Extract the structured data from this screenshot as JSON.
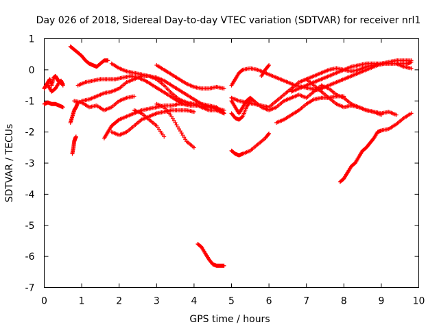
{
  "chart_data": {
    "type": "scatter",
    "title": "Day 026 of 2018, Sidereal Day-to-day VTEC variation (SDTVAR) for receiver nrl1",
    "xlabel": "GPS time / hours",
    "ylabel": "SDTVAR / TECUs",
    "xlim": [
      0,
      10
    ],
    "ylim": [
      -7,
      1
    ],
    "xticks": [
      "0",
      "1",
      "2",
      "3",
      "4",
      "5",
      "6",
      "7",
      "8",
      "9",
      "10"
    ],
    "yticks": [
      "1",
      "0",
      "-1",
      "-2",
      "-3",
      "-4",
      "-5",
      "-6",
      "-7"
    ],
    "grid": false,
    "legend": "none",
    "marker": "+",
    "marker_color": "#ff0000",
    "series": [
      {
        "name": "track-01",
        "x": [
          0.0,
          0.1,
          0.2,
          0.3,
          0.4,
          0.5
        ],
        "y": [
          -1.1,
          -1.05,
          -1.1,
          -1.1,
          -1.15,
          -1.2
        ]
      },
      {
        "name": "track-02",
        "x": [
          0.0,
          0.05,
          0.1,
          0.15,
          0.2,
          0.25,
          0.3,
          0.35,
          0.4,
          0.45,
          0.5
        ],
        "y": [
          -0.6,
          -0.5,
          -0.4,
          -0.3,
          -0.5,
          -0.25,
          -0.2,
          -0.3,
          -0.4,
          -0.35,
          -0.5
        ]
      },
      {
        "name": "track-03",
        "x": [
          0.1,
          0.2,
          0.3,
          0.4,
          0.5
        ],
        "y": [
          -0.5,
          -0.7,
          -0.6,
          -0.4,
          -0.45
        ]
      },
      {
        "name": "track-04",
        "x": [
          0.7,
          0.75,
          0.8,
          0.85,
          0.9
        ],
        "y": [
          -1.7,
          -1.5,
          -1.3,
          -1.2,
          -1.05
        ]
      },
      {
        "name": "track-05",
        "x": [
          0.75,
          0.78,
          0.8,
          0.83,
          0.85
        ],
        "y": [
          -2.7,
          -2.5,
          -2.3,
          -2.2,
          -2.15
        ]
      },
      {
        "name": "track-06",
        "x": [
          0.7,
          0.8,
          0.9,
          1.0,
          1.1,
          1.2,
          1.3,
          1.4,
          1.5,
          1.6,
          1.7
        ],
        "y": [
          0.75,
          0.65,
          0.55,
          0.45,
          0.3,
          0.2,
          0.15,
          0.1,
          0.2,
          0.3,
          0.3
        ]
      },
      {
        "name": "track-07",
        "x": [
          0.9,
          1.1,
          1.3,
          1.5,
          1.7,
          1.9,
          2.1,
          2.3,
          2.5,
          2.7,
          2.9,
          3.1,
          3.3,
          3.5,
          3.7,
          3.9,
          4.1,
          4.3,
          4.5,
          4.7,
          4.8
        ],
        "y": [
          -0.5,
          -0.4,
          -0.35,
          -0.3,
          -0.3,
          -0.3,
          -0.25,
          -0.2,
          -0.25,
          -0.35,
          -0.5,
          -0.65,
          -0.8,
          -0.95,
          -1.1,
          -1.15,
          -1.15,
          -1.2,
          -1.2,
          -1.3,
          -1.4
        ]
      },
      {
        "name": "track-08",
        "x": [
          1.0,
          1.2,
          1.4,
          1.6,
          1.8,
          2.0,
          2.2,
          2.4,
          2.6,
          2.8,
          3.0,
          3.2,
          3.4,
          3.6,
          3.8,
          4.0,
          4.2,
          4.4,
          4.6,
          4.8
        ],
        "y": [
          -1.0,
          -0.95,
          -0.85,
          -0.75,
          -0.7,
          -0.6,
          -0.4,
          -0.3,
          -0.2,
          -0.2,
          -0.3,
          -0.5,
          -0.75,
          -0.95,
          -1.05,
          -1.1,
          -1.2,
          -1.3,
          -1.3,
          -1.4
        ]
      },
      {
        "name": "track-09",
        "x": [
          1.8,
          2.0,
          2.2,
          2.4,
          2.6,
          2.8,
          3.0,
          3.2,
          3.4,
          3.6,
          3.8,
          4.0,
          4.2,
          4.4,
          4.6,
          4.8
        ],
        "y": [
          0.2,
          0.05,
          -0.05,
          -0.1,
          -0.15,
          -0.2,
          -0.25,
          -0.35,
          -0.5,
          -0.65,
          -0.8,
          -0.95,
          -1.1,
          -1.2,
          -1.25,
          -1.3
        ]
      },
      {
        "name": "track-10",
        "x": [
          3.0,
          3.2,
          3.4,
          3.6,
          3.8,
          4.0,
          4.2,
          4.4,
          4.6,
          4.8
        ],
        "y": [
          0.15,
          0.0,
          -0.15,
          -0.3,
          -0.45,
          -0.55,
          -0.6,
          -0.6,
          -0.55,
          -0.6
        ]
      },
      {
        "name": "track-11",
        "x": [
          0.8,
          1.0,
          1.2,
          1.4,
          1.6,
          1.8,
          2.0,
          2.2,
          2.4
        ],
        "y": [
          -1.0,
          -1.05,
          -1.2,
          -1.15,
          -1.3,
          -1.2,
          -1.0,
          -0.9,
          -0.85
        ]
      },
      {
        "name": "track-12",
        "x": [
          1.6,
          1.7,
          1.8,
          1.9,
          2.0,
          2.2,
          2.4,
          2.6,
          2.8,
          3.0,
          3.2,
          3.4,
          3.6,
          3.8,
          4.0,
          4.2,
          4.4,
          4.6,
          4.8
        ],
        "y": [
          -2.2,
          -2.0,
          -1.8,
          -1.7,
          -1.6,
          -1.5,
          -1.4,
          -1.3,
          -1.25,
          -1.2,
          -1.15,
          -1.15,
          -1.1,
          -1.1,
          -1.1,
          -1.1,
          -1.15,
          -1.2,
          -1.4
        ]
      },
      {
        "name": "track-13",
        "x": [
          1.8,
          2.0,
          2.2,
          2.4,
          2.6,
          2.8,
          3.0,
          3.2,
          3.4,
          3.6,
          3.8,
          4.0
        ],
        "y": [
          -2.0,
          -2.1,
          -2.0,
          -1.8,
          -1.6,
          -1.5,
          -1.4,
          -1.35,
          -1.3,
          -1.3,
          -1.3,
          -1.35
        ]
      },
      {
        "name": "track-14",
        "x": [
          2.4,
          2.6,
          2.8,
          3.0,
          3.2
        ],
        "y": [
          -1.3,
          -1.4,
          -1.6,
          -1.8,
          -2.15
        ]
      },
      {
        "name": "track-15",
        "x": [
          3.0,
          3.2,
          3.4,
          3.6,
          3.8,
          4.0
        ],
        "y": [
          -1.1,
          -1.2,
          -1.5,
          -1.9,
          -2.3,
          -2.5
        ]
      },
      {
        "name": "track-16",
        "x": [
          4.1,
          4.2,
          4.3,
          4.4,
          4.5,
          4.6,
          4.7,
          4.8
        ],
        "y": [
          -5.6,
          -5.7,
          -5.9,
          -6.1,
          -6.25,
          -6.3,
          -6.3,
          -6.3
        ]
      },
      {
        "name": "track-17",
        "x": [
          5.0,
          5.1,
          5.2,
          5.3,
          5.5,
          5.7,
          5.9,
          6.1,
          6.3,
          6.5,
          6.7,
          6.9,
          7.1,
          7.3,
          7.5,
          7.7,
          7.9,
          8.1,
          8.3,
          8.5,
          8.7,
          8.9,
          9.1,
          9.3,
          9.5,
          9.7,
          9.8
        ],
        "y": [
          -0.5,
          -0.3,
          -0.1,
          0.0,
          0.05,
          0.0,
          -0.1,
          -0.2,
          -0.3,
          -0.4,
          -0.5,
          -0.55,
          -0.6,
          -0.65,
          -0.55,
          -0.45,
          -0.35,
          -0.25,
          -0.15,
          -0.05,
          0.05,
          0.15,
          0.2,
          0.2,
          0.2,
          0.2,
          0.25
        ]
      },
      {
        "name": "track-18",
        "x": [
          5.0,
          5.2,
          5.4,
          5.6,
          5.8,
          6.0,
          6.2,
          6.4,
          6.6,
          6.8,
          7.0,
          7.2,
          7.4,
          7.6,
          7.8,
          8.0,
          8.2,
          8.4,
          8.6,
          8.8,
          9.0,
          9.2,
          9.4,
          9.6,
          9.8
        ],
        "y": [
          -0.9,
          -1.0,
          -1.05,
          -1.1,
          -1.15,
          -1.2,
          -1.0,
          -0.8,
          -0.6,
          -0.4,
          -0.3,
          -0.2,
          -0.1,
          0.0,
          0.05,
          0.0,
          -0.05,
          0.0,
          0.1,
          0.15,
          0.2,
          0.25,
          0.3,
          0.3,
          0.3
        ]
      },
      {
        "name": "track-19",
        "x": [
          5.0,
          5.1,
          5.2,
          5.3,
          5.4,
          5.5,
          5.6,
          5.8,
          6.0,
          6.2,
          6.4,
          6.6,
          6.8,
          7.0,
          7.2,
          7.4,
          7.6,
          7.8,
          8.0,
          8.2,
          8.4,
          8.6,
          8.8,
          9.0,
          9.2,
          9.4
        ],
        "y": [
          -1.0,
          -1.2,
          -1.4,
          -1.2,
          -1.0,
          -0.9,
          -1.0,
          -1.2,
          -1.3,
          -1.2,
          -1.0,
          -0.9,
          -0.8,
          -0.9,
          -0.7,
          -0.5,
          -0.6,
          -0.8,
          -0.9,
          -1.1,
          -1.2,
          -1.3,
          -1.35,
          -1.4,
          -1.35,
          -1.45
        ]
      },
      {
        "name": "track-20",
        "x": [
          5.0,
          5.1,
          5.2,
          5.3,
          5.5,
          5.7,
          5.9,
          6.0
        ],
        "y": [
          -2.6,
          -2.7,
          -2.75,
          -2.7,
          -2.6,
          -2.4,
          -2.2,
          -2.05
        ]
      },
      {
        "name": "track-21",
        "x": [
          5.0,
          5.1,
          5.2,
          5.3,
          5.4,
          5.5
        ],
        "y": [
          -1.4,
          -1.55,
          -1.6,
          -1.5,
          -1.2,
          -1.0
        ]
      },
      {
        "name": "track-22",
        "x": [
          5.8,
          5.9,
          6.0
        ],
        "y": [
          -0.2,
          0.0,
          0.15
        ]
      },
      {
        "name": "track-23",
        "x": [
          6.2,
          6.4,
          6.6,
          6.8,
          7.0,
          7.2,
          7.4,
          7.6,
          7.8,
          8.0
        ],
        "y": [
          -1.7,
          -1.6,
          -1.45,
          -1.3,
          -1.1,
          -0.95,
          -0.9,
          -0.9,
          -0.85,
          -0.85
        ]
      },
      {
        "name": "track-24",
        "x": [
          6.6,
          6.8,
          7.0,
          7.2,
          7.4,
          7.6,
          7.8,
          8.0,
          8.2,
          8.4,
          8.6,
          8.8,
          9.0,
          9.2,
          9.4,
          9.6,
          9.8
        ],
        "y": [
          -0.7,
          -0.6,
          -0.5,
          -0.4,
          -0.3,
          -0.2,
          -0.1,
          0.0,
          0.1,
          0.15,
          0.2,
          0.2,
          0.2,
          0.2,
          0.2,
          0.1,
          0.05
        ]
      },
      {
        "name": "track-25",
        "x": [
          7.0,
          7.2,
          7.4,
          7.6,
          7.8,
          8.0,
          8.2,
          8.4,
          8.6,
          8.8,
          9.0
        ],
        "y": [
          -0.3,
          -0.5,
          -0.7,
          -0.9,
          -1.1,
          -1.2,
          -1.15,
          -1.2,
          -1.3,
          -1.35,
          -1.45
        ]
      },
      {
        "name": "track-26",
        "x": [
          7.9,
          8.0,
          8.1,
          8.2,
          8.3,
          8.4,
          8.5,
          8.6,
          8.7,
          8.8,
          8.9,
          9.0,
          9.2,
          9.4,
          9.6,
          9.8
        ],
        "y": [
          -3.6,
          -3.5,
          -3.3,
          -3.1,
          -3.0,
          -2.8,
          -2.6,
          -2.5,
          -2.35,
          -2.2,
          -2.0,
          -1.95,
          -1.9,
          -1.75,
          -1.55,
          -1.4
        ]
      }
    ]
  }
}
